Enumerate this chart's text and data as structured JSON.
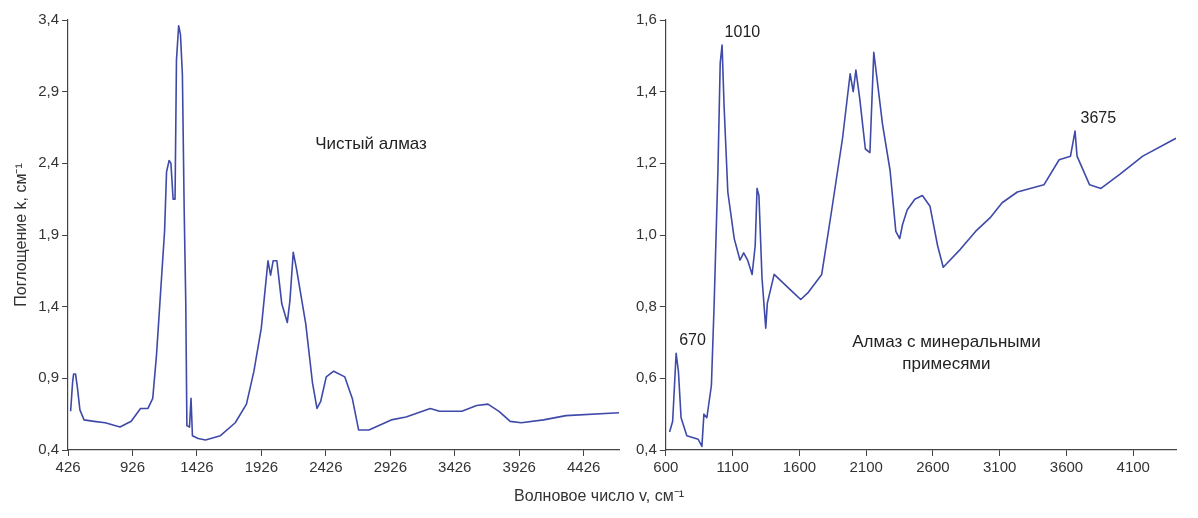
{
  "chart_data": [
    {
      "type": "line",
      "ylabel": "Поглощение k, см⁻¹",
      "xlabel": "Волновое число v, см⁻¹",
      "annotations": [
        "Чистый алмаз"
      ],
      "xlim": [
        426,
        4700
      ],
      "xticks": [
        426,
        926,
        1426,
        1926,
        2426,
        2926,
        3426,
        3926,
        4426
      ],
      "ylim": [
        0.4,
        3.4
      ],
      "yticks": [
        {
          "value": 0.4,
          "label": "0,4"
        },
        {
          "value": 0.9,
          "label": "0,9"
        },
        {
          "value": 1.4,
          "label": "1,4"
        },
        {
          "value": 1.9,
          "label": "1,9"
        },
        {
          "value": 2.4,
          "label": "2,4"
        },
        {
          "value": 2.9,
          "label": "2,9"
        },
        {
          "value": 3.4,
          "label": "3,4"
        }
      ],
      "series": [
        {
          "color": "#3f4aa8",
          "x": [
            446,
            461,
            469,
            484,
            498,
            518,
            550,
            628,
            714,
            829,
            916,
            988,
            1046,
            1083,
            1112,
            1146,
            1175,
            1190,
            1210,
            1224,
            1241,
            1256,
            1267,
            1284,
            1298,
            1313,
            1327,
            1339,
            1348,
            1368,
            1380,
            1391,
            1435,
            1492,
            1608,
            1723,
            1810,
            1868,
            1925,
            1977,
            1997,
            2017,
            2046,
            2084,
            2127,
            2147,
            2173,
            2199,
            2270,
            2322,
            2357,
            2386,
            2429,
            2487,
            2573,
            2631,
            2680,
            2760,
            2933,
            3048,
            3236,
            3308,
            3481,
            3596,
            3683,
            3769,
            3856,
            3942,
            4115,
            4288,
            4700
          ],
          "values": [
            0.67,
            0.87,
            0.93,
            0.93,
            0.84,
            0.68,
            0.61,
            0.6,
            0.59,
            0.56,
            0.6,
            0.69,
            0.69,
            0.76,
            1.06,
            1.53,
            1.93,
            2.34,
            2.42,
            2.4,
            2.15,
            2.15,
            3.12,
            3.36,
            3.3,
            3.02,
            2.07,
            1.44,
            0.57,
            0.56,
            0.76,
            0.5,
            0.48,
            0.47,
            0.5,
            0.59,
            0.72,
            0.95,
            1.25,
            1.72,
            1.62,
            1.72,
            1.72,
            1.42,
            1.29,
            1.44,
            1.78,
            1.66,
            1.28,
            0.87,
            0.69,
            0.74,
            0.91,
            0.95,
            0.91,
            0.76,
            0.54,
            0.54,
            0.61,
            0.63,
            0.69,
            0.67,
            0.67,
            0.71,
            0.72,
            0.67,
            0.6,
            0.59,
            0.61,
            0.64,
            0.66
          ]
        }
      ]
    },
    {
      "type": "line",
      "annotations": [
        "Алмаз с минеральными примесями",
        {
          "text": "670",
          "x": 670,
          "y": 0.67
        },
        {
          "text": "1010",
          "x": 1010,
          "y": 1.53
        },
        {
          "text": "3675",
          "x": 3675,
          "y": 1.29
        }
      ],
      "xlim": [
        600,
        4420
      ],
      "xticks": [
        600,
        1100,
        1600,
        2100,
        2600,
        3100,
        3600,
        4100
      ],
      "ylim": [
        0.4,
        1.6
      ],
      "yticks": [
        {
          "value": 0.4,
          "label": "0,4"
        },
        {
          "value": 0.6,
          "label": "0,6"
        },
        {
          "value": 0.8,
          "label": "0,8"
        },
        {
          "value": 1.0,
          "label": "1,0"
        },
        {
          "value": 1.2,
          "label": "1,2"
        },
        {
          "value": 1.4,
          "label": "1,4"
        },
        {
          "value": 1.6,
          "label": "1,6"
        }
      ],
      "series": [
        {
          "color": "#3f4aa8",
          "x": [
            628,
            651,
            677,
            694,
            714,
            757,
            842,
            870,
            885,
            907,
            941,
            961,
            990,
            1007,
            1021,
            1036,
            1064,
            1112,
            1155,
            1183,
            1212,
            1246,
            1269,
            1283,
            1297,
            1320,
            1348,
            1360,
            1411,
            1468,
            1553,
            1610,
            1667,
            1767,
            1838,
            1923,
            1980,
            2003,
            2023,
            2052,
            2094,
            2128,
            2157,
            2180,
            2222,
            2279,
            2322,
            2351,
            2373,
            2407,
            2464,
            2521,
            2578,
            2635,
            2677,
            2805,
            2919,
            3033,
            3118,
            3232,
            3431,
            3545,
            3630,
            3664,
            3679,
            3773,
            3858,
            4001,
            4171,
            4420
          ],
          "values": [
            0.45,
            0.48,
            0.67,
            0.62,
            0.49,
            0.44,
            0.43,
            0.41,
            0.5,
            0.49,
            0.58,
            0.8,
            1.18,
            1.48,
            1.53,
            1.36,
            1.12,
            0.99,
            0.93,
            0.95,
            0.93,
            0.89,
            0.97,
            1.13,
            1.11,
            0.88,
            0.74,
            0.81,
            0.89,
            0.87,
            0.84,
            0.82,
            0.84,
            0.89,
            1.06,
            1.27,
            1.45,
            1.4,
            1.46,
            1.38,
            1.24,
            1.23,
            1.51,
            1.44,
            1.31,
            1.18,
            1.01,
            0.99,
            1.03,
            1.07,
            1.1,
            1.11,
            1.08,
            0.97,
            0.91,
            0.96,
            1.01,
            1.05,
            1.09,
            1.12,
            1.14,
            1.21,
            1.22,
            1.29,
            1.22,
            1.14,
            1.13,
            1.17,
            1.22,
            1.27
          ]
        }
      ]
    }
  ]
}
